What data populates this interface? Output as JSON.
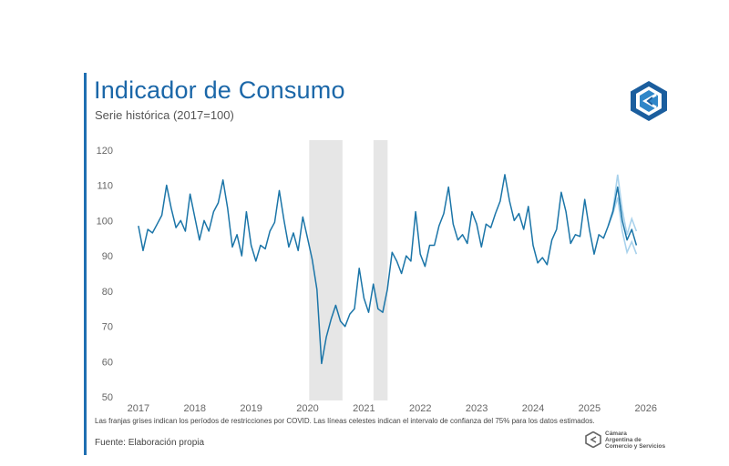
{
  "header": {
    "title": "Indicador de Consumo",
    "subtitle": "Serie histórica (2017=100)"
  },
  "footer": {
    "note": "Las franjas grises indican los períodos de restricciones por COVID. Las líneas celestes indican el intervalo de confianza del 75% para los datos estimados.",
    "source": "Fuente: Elaboración propia",
    "org_lines": [
      "Cámara",
      "Argentina de",
      "Comercio y Servicios"
    ]
  },
  "colors": {
    "accent": "#1f6fb2",
    "series": "#1b75a8",
    "interval": "#a9d2ec",
    "shade": "#e6e6e6"
  },
  "chart_data": {
    "type": "line",
    "title": "Indicador de Consumo",
    "subtitle": "Serie histórica (2017=100)",
    "xlabel": "",
    "ylabel": "",
    "xlim": [
      2016.97,
      2026.15
    ],
    "ylim": [
      48,
      122
    ],
    "yticks": [
      50,
      60,
      70,
      80,
      90,
      100,
      110,
      120
    ],
    "xticks": [
      2017,
      2018,
      2019,
      2020,
      2021,
      2022,
      2023,
      2024,
      2025,
      2026
    ],
    "grid": false,
    "shaded_periods": [
      {
        "start": 2020.03,
        "end": 2020.62
      },
      {
        "start": 2021.17,
        "end": 2021.42
      }
    ],
    "series": [
      {
        "name": "Indicador de Consumo",
        "start": 2017.0,
        "step": 0.0833333,
        "values": [
          98.5,
          91.5,
          97.5,
          96.5,
          99.0,
          101.5,
          110.0,
          103.5,
          98.0,
          100.0,
          97.0,
          107.5,
          101.0,
          94.5,
          100.0,
          97.0,
          102.5,
          105.0,
          111.5,
          103.5,
          92.5,
          96.0,
          90.0,
          102.5,
          93.0,
          88.5,
          93.0,
          92.0,
          97.0,
          99.5,
          108.5,
          100.0,
          92.5,
          96.5,
          91.5,
          101.0,
          95.0,
          89.0,
          80.5,
          59.5,
          67.0,
          72.0,
          76.0,
          71.5,
          70.0,
          73.5,
          75.0,
          86.5,
          78.0,
          74.0,
          82.0,
          75.0,
          74.0,
          80.5,
          91.0,
          88.5,
          85.0,
          90.0,
          88.5,
          102.5,
          90.5,
          87.0,
          93.0,
          93.0,
          98.5,
          102.0,
          109.5,
          99.0,
          94.5,
          96.0,
          93.5,
          102.5,
          99.0,
          92.5,
          99.0,
          98.0,
          102.0,
          105.5,
          113.0,
          105.5,
          100.0,
          102.0,
          97.5,
          104.0,
          93.0,
          88.0,
          89.5,
          87.5,
          94.5,
          97.5,
          108.0,
          102.5,
          93.5,
          96.0,
          95.5,
          106.0,
          97.5,
          90.5,
          96.0,
          95.0,
          98.5,
          102.5,
          109.5,
          100.0,
          94.5,
          97.5,
          93.0
        ]
      }
    ],
    "confidence_interval": {
      "label": "Intervalo de confianza 75%",
      "x": [
        2025.333,
        2025.417,
        2025.5,
        2025.583,
        2025.667,
        2025.75,
        2025.833
      ],
      "upper": [
        98.5,
        103.0,
        113.0,
        103.0,
        96.0,
        100.5,
        97.0
      ],
      "lower": [
        98.5,
        102.0,
        106.5,
        97.0,
        91.0,
        94.0,
        90.5
      ]
    }
  }
}
